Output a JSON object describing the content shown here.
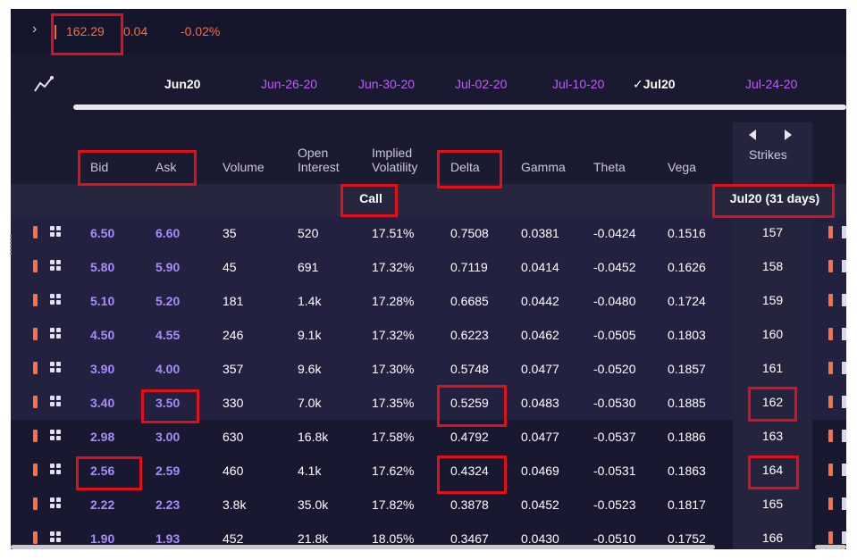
{
  "ticker": {
    "price": "162.29",
    "change": "0.04",
    "change_pct": "-0.02%"
  },
  "expiries": [
    {
      "label": "Jun20",
      "style": "white"
    },
    {
      "label": "Jun-26-20",
      "style": "purple"
    },
    {
      "label": "Jun-30-20",
      "style": "purple"
    },
    {
      "label": "Jul-02-20",
      "style": "purple"
    },
    {
      "label": "Jul-10-20",
      "style": "purple"
    },
    {
      "label": "✓Jul20",
      "style": "white",
      "selected": true
    },
    {
      "label": "Jul-24-20",
      "style": "purple"
    }
  ],
  "columns": {
    "bid": "Bid",
    "ask": "Ask",
    "volume": "Volume",
    "open_interest_1": "Open",
    "open_interest_2": "Interest",
    "implied_vol_1": "Implied",
    "implied_vol_2": "Volatility",
    "delta": "Delta",
    "gamma": "Gamma",
    "theta": "Theta",
    "vega": "Vega",
    "strikes": "Strikes"
  },
  "subheader": {
    "side": "Call",
    "expiry": "Jul20 (31 days)"
  },
  "rows": [
    {
      "bid": "6.50",
      "ask": "6.60",
      "volume": "35",
      "oi": "520",
      "iv": "17.51%",
      "delta": "0.7508",
      "gamma": "0.0381",
      "theta": "-0.0424",
      "vega": "0.1516",
      "strike": "157",
      "itm": true
    },
    {
      "bid": "5.80",
      "ask": "5.90",
      "volume": "45",
      "oi": "691",
      "iv": "17.32%",
      "delta": "0.7119",
      "gamma": "0.0414",
      "theta": "-0.0452",
      "vega": "0.1626",
      "strike": "158",
      "itm": true
    },
    {
      "bid": "5.10",
      "ask": "5.20",
      "volume": "181",
      "oi": "1.4k",
      "iv": "17.28%",
      "delta": "0.6685",
      "gamma": "0.0442",
      "theta": "-0.0480",
      "vega": "0.1724",
      "strike": "159",
      "itm": true
    },
    {
      "bid": "4.50",
      "ask": "4.55",
      "volume": "246",
      "oi": "9.1k",
      "iv": "17.32%",
      "delta": "0.6223",
      "gamma": "0.0462",
      "theta": "-0.0505",
      "vega": "0.1803",
      "strike": "160",
      "itm": true
    },
    {
      "bid": "3.90",
      "ask": "4.00",
      "volume": "357",
      "oi": "9.6k",
      "iv": "17.30%",
      "delta": "0.5748",
      "gamma": "0.0477",
      "theta": "-0.0520",
      "vega": "0.1857",
      "strike": "161",
      "itm": true
    },
    {
      "bid": "3.40",
      "ask": "3.50",
      "volume": "330",
      "oi": "7.0k",
      "iv": "17.35%",
      "delta": "0.5259",
      "gamma": "0.0483",
      "theta": "-0.0530",
      "vega": "0.1885",
      "strike": "162",
      "itm": true
    },
    {
      "bid": "2.98",
      "ask": "3.00",
      "volume": "630",
      "oi": "16.8k",
      "iv": "17.58%",
      "delta": "0.4792",
      "gamma": "0.0477",
      "theta": "-0.0537",
      "vega": "0.1886",
      "strike": "163",
      "itm": false
    },
    {
      "bid": "2.56",
      "ask": "2.59",
      "volume": "460",
      "oi": "4.1k",
      "iv": "17.62%",
      "delta": "0.4324",
      "gamma": "0.0469",
      "theta": "-0.0531",
      "vega": "0.1863",
      "strike": "164",
      "itm": false
    },
    {
      "bid": "2.22",
      "ask": "2.23",
      "volume": "3.8k",
      "oi": "35.0k",
      "iv": "17.82%",
      "delta": "0.3878",
      "gamma": "0.0452",
      "theta": "-0.0523",
      "vega": "0.1817",
      "strike": "165",
      "itm": false
    },
    {
      "bid": "1.90",
      "ask": "1.93",
      "volume": "452",
      "oi": "21.8k",
      "iv": "18.05%",
      "delta": "0.3467",
      "gamma": "0.0430",
      "theta": "-0.0510",
      "vega": "0.1752",
      "strike": "166",
      "itm": false
    }
  ],
  "colors": {
    "accent_purple": "#c25bff",
    "bid_ask": "#a78bff",
    "negative": "#ff6b3d",
    "highlight": "#e0101a"
  }
}
